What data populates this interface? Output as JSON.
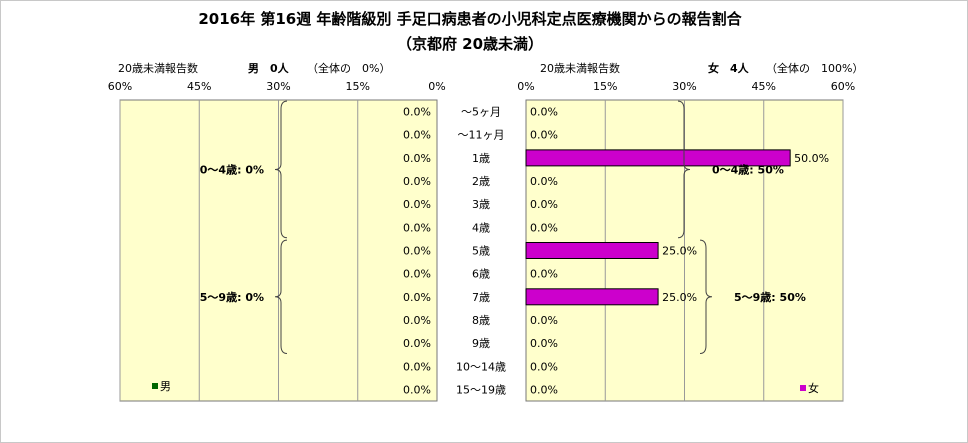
{
  "title": {
    "line1": "2016年 第16週 年齢階級別 手足口病患者の小児科定点医療機関からの報告割合",
    "line2": "（京都府 20歳未満）"
  },
  "left_header": {
    "label": "20歳未満報告数",
    "sex_count": "男　0人",
    "share": "（全体の　0%）"
  },
  "right_header": {
    "label": "20歳未満報告数",
    "sex_count": "女　4人",
    "share": "（全体の　100%）"
  },
  "colors": {
    "plot_bg": "#FFFFCC",
    "female_bar": "#CC00CC",
    "male_marker": "#006600",
    "grid": "#999999"
  },
  "chart_data": [
    {
      "type": "bar",
      "orientation": "horizontal-reversed",
      "categories": [
        "～5ヶ月",
        "～11ヶ月",
        "1歳",
        "2歳",
        "3歳",
        "4歳",
        "5歳",
        "6歳",
        "7歳",
        "8歳",
        "9歳",
        "10～14歳",
        "15～19歳"
      ],
      "series": [
        {
          "name": "男",
          "values": [
            0,
            0,
            0,
            0,
            0,
            0,
            0,
            0,
            0,
            0,
            0,
            0,
            0
          ]
        }
      ],
      "data_labels": [
        "0.0%",
        "0.0%",
        "0.0%",
        "0.0%",
        "0.0%",
        "0.0%",
        "0.0%",
        "0.0%",
        "0.0%",
        "0.0%",
        "0.0%",
        "0.0%",
        "0.0%"
      ],
      "xlim": [
        0,
        60
      ],
      "xticks": [
        60,
        45,
        30,
        15,
        0
      ],
      "xtick_labels": [
        "60%",
        "45%",
        "30%",
        "15%",
        "0%"
      ],
      "grid": true,
      "legend": "bottom-left",
      "annotations": [
        {
          "text": "0～4歳: 0%",
          "from": "～5ヶ月",
          "to": "4歳"
        },
        {
          "text": "5～9歳: 0%",
          "from": "5歳",
          "to": "9歳"
        }
      ]
    },
    {
      "type": "bar",
      "orientation": "horizontal",
      "categories": [
        "～5ヶ月",
        "～11ヶ月",
        "1歳",
        "2歳",
        "3歳",
        "4歳",
        "5歳",
        "6歳",
        "7歳",
        "8歳",
        "9歳",
        "10～14歳",
        "15～19歳"
      ],
      "series": [
        {
          "name": "女",
          "values": [
            0,
            0,
            50,
            0,
            0,
            0,
            25,
            0,
            25,
            0,
            0,
            0,
            0
          ]
        }
      ],
      "data_labels": [
        "0.0%",
        "0.0%",
        "50.0%",
        "0.0%",
        "0.0%",
        "0.0%",
        "25.0%",
        "0.0%",
        "25.0%",
        "0.0%",
        "0.0%",
        "0.0%",
        "0.0%"
      ],
      "xlim": [
        0,
        60
      ],
      "xticks": [
        0,
        15,
        30,
        45,
        60
      ],
      "xtick_labels": [
        "0%",
        "15%",
        "30%",
        "45%",
        "60%"
      ],
      "grid": true,
      "legend": "bottom-right",
      "annotations": [
        {
          "text": "0～4歳: 50%",
          "from": "～5ヶ月",
          "to": "4歳"
        },
        {
          "text": "5～9歳: 50%",
          "from": "5歳",
          "to": "9歳"
        }
      ]
    }
  ]
}
